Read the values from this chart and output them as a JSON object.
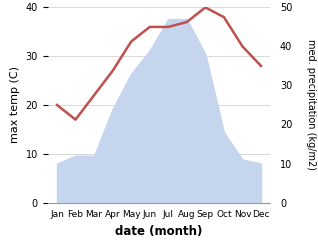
{
  "months": [
    "Jan",
    "Feb",
    "Mar",
    "Apr",
    "May",
    "Jun",
    "Jul",
    "Aug",
    "Sep",
    "Oct",
    "Nov",
    "Dec"
  ],
  "temp": [
    20,
    17,
    22,
    27,
    33,
    36,
    36,
    37,
    40,
    38,
    32,
    28
  ],
  "precip": [
    10,
    12,
    12,
    24,
    33,
    39,
    47,
    47,
    38,
    18,
    11,
    10
  ],
  "temp_color": "#c0504d",
  "precip_fill_color": "#c5d5ee",
  "title": "",
  "xlabel": "date (month)",
  "ylabel_left": "max temp (C)",
  "ylabel_right": "med. precipitation (kg/m2)",
  "ylim_left": [
    0,
    40
  ],
  "ylim_right": [
    0,
    50
  ],
  "grid_color": "#cccccc"
}
